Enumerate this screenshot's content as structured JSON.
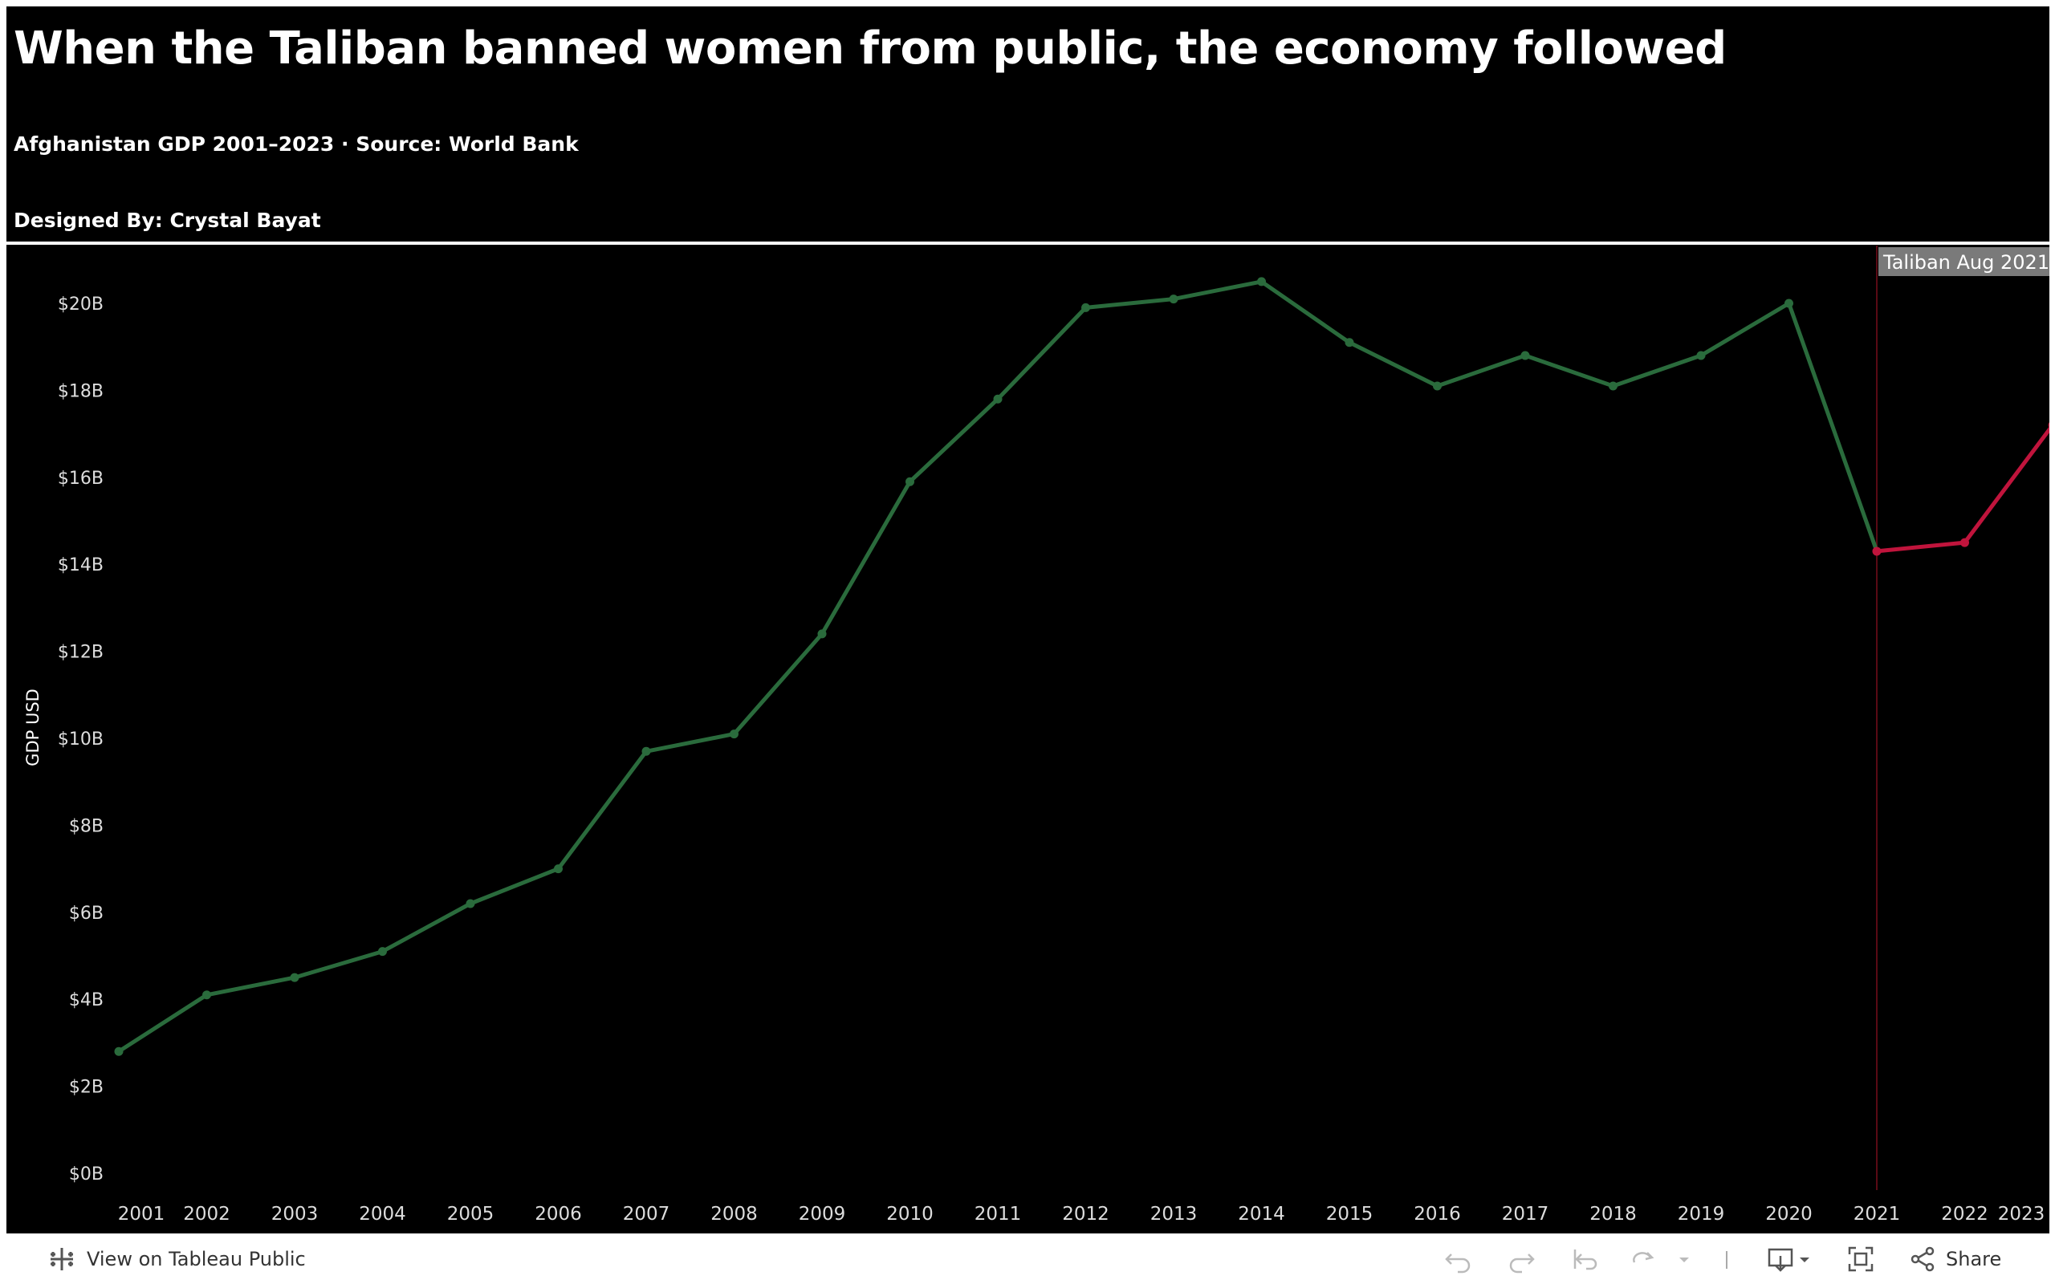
{
  "header": {
    "title": "When the Taliban banned women from public, the economy followed",
    "subtitle": "Afghanistan GDP 2001–2023 · Source: World Bank",
    "credit": "Designed By: Crystal Bayat"
  },
  "chart_data": {
    "type": "line",
    "x": [
      2001,
      2002,
      2003,
      2004,
      2005,
      2006,
      2007,
      2008,
      2009,
      2010,
      2011,
      2012,
      2013,
      2014,
      2015,
      2016,
      2017,
      2018,
      2019,
      2020,
      2021,
      2022,
      2023
    ],
    "series": [
      {
        "values_billion_usd": [
          2.8,
          4.1,
          4.5,
          5.1,
          6.2,
          7.0,
          9.7,
          10.1,
          12.4,
          15.9,
          17.8,
          19.9,
          20.1,
          20.5,
          19.1,
          18.1,
          18.8,
          18.1,
          18.8,
          20.0,
          14.3,
          14.5,
          17.2
        ],
        "color_before": "#2a6b3c",
        "color_after": "#c0143c",
        "split_year": 2021
      }
    ],
    "ylabel": "GDP USD",
    "xlabel": "",
    "y_ticks": [
      "$0B",
      "$2B",
      "$4B",
      "$6B",
      "$8B",
      "$10B",
      "$12B",
      "$14B",
      "$16B",
      "$18B",
      "$20B"
    ],
    "y_tick_values": [
      0,
      2,
      4,
      6,
      8,
      10,
      12,
      14,
      16,
      18,
      20
    ],
    "x_tick_labels": [
      "2001",
      "2002",
      "2003",
      "2004",
      "2005",
      "2006",
      "2007",
      "2008",
      "2009",
      "2010",
      "2011",
      "2012",
      "2013",
      "2014",
      "2015",
      "2016",
      "2017",
      "2018",
      "2019",
      "2020",
      "2021",
      "2022",
      "2023"
    ],
    "ylim": [
      0,
      20
    ],
    "grid": false,
    "annotation": {
      "label": "Taliban Aug 2021",
      "x": 2021,
      "line_color": "#5a0a14",
      "box_color": "#7a7a7a"
    },
    "background": "#000000"
  },
  "toolbar": {
    "view_label": "View on Tableau Public",
    "share_label": "Share"
  }
}
